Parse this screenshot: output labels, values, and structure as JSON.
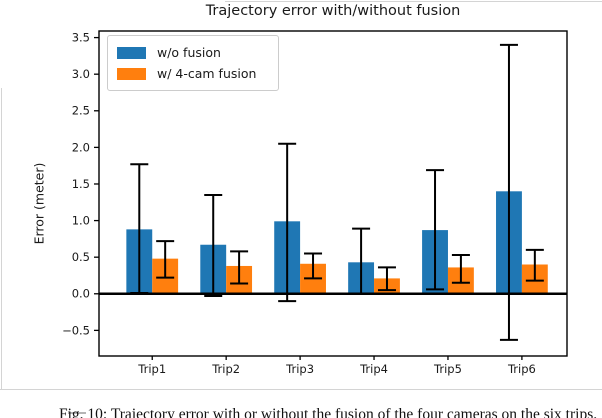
{
  "page": {
    "caption_fragment": "Fig. 10: Trajectory error with or without the fusion of the four cameras on the six trips."
  },
  "chart_data": {
    "type": "bar",
    "title": "Trajectory error with/without fusion",
    "xlabel": "",
    "ylabel": "Error (meter)",
    "categories": [
      "Trip1",
      "Trip2",
      "Trip3",
      "Trip4",
      "Trip5",
      "Trip6"
    ],
    "series": [
      {
        "name": "w/o fusion",
        "color": "#1f77b4",
        "values": [
          0.88,
          0.67,
          0.99,
          0.43,
          0.87,
          1.4
        ],
        "whisker_high": [
          1.77,
          1.35,
          2.05,
          0.89,
          1.69,
          3.4
        ],
        "whisker_low": [
          0.01,
          -0.03,
          -0.1,
          0.0,
          0.06,
          -0.63
        ]
      },
      {
        "name": "w/ 4-cam fusion",
        "color": "#ff7f0e",
        "values": [
          0.48,
          0.38,
          0.41,
          0.21,
          0.36,
          0.4
        ],
        "whisker_high": [
          0.72,
          0.58,
          0.55,
          0.36,
          0.53,
          0.6
        ],
        "whisker_low": [
          0.22,
          0.14,
          0.21,
          0.05,
          0.15,
          0.18
        ]
      }
    ],
    "bar_width": 0.35,
    "error_bars": true,
    "error_bar_color": "#000000",
    "ylim": [
      -0.85,
      3.59
    ],
    "xlim": [
      -0.72,
      5.61
    ],
    "yticks": {
      "values": [
        -0.5,
        0.0,
        0.5,
        1.0,
        1.5,
        2.0,
        2.5,
        3.0,
        3.5
      ],
      "labels": [
        "−0.5",
        "0.0",
        "0.5",
        "1.0",
        "1.5",
        "2.0",
        "2.5",
        "3.0",
        "3.5"
      ]
    },
    "grid": false,
    "legend_position": "upper left",
    "zero_line": true,
    "spine_color": "#000000"
  }
}
